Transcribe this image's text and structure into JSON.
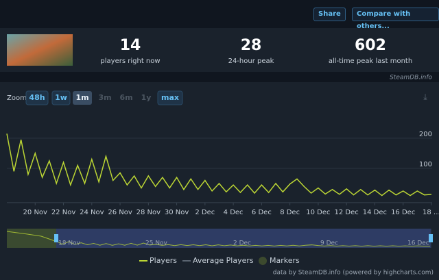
{
  "header": {
    "share": "Share",
    "compare": "Compare with others..."
  },
  "stats": [
    {
      "value": "14",
      "label": "players right now"
    },
    {
      "value": "28",
      "label": "24-hour peak"
    },
    {
      "value": "602",
      "label": "all-time peak last month"
    }
  ],
  "watermark": "SteamDB.info",
  "zoom": {
    "label": "Zoom",
    "active": 2,
    "options": [
      {
        "label": "48h",
        "enabled": true
      },
      {
        "label": "1w",
        "enabled": true
      },
      {
        "label": "1m",
        "enabled": true
      },
      {
        "label": "3m",
        "enabled": false
      },
      {
        "label": "6m",
        "enabled": false
      },
      {
        "label": "1y",
        "enabled": false
      },
      {
        "label": "max",
        "enabled": true
      }
    ]
  },
  "chart_data": {
    "type": "line",
    "grid": true,
    "x": [
      18,
      18.5,
      19,
      19.5,
      20,
      20.5,
      21,
      21.5,
      22,
      22.5,
      23,
      23.5,
      24,
      24.5,
      25,
      25.5,
      26,
      26.5,
      27,
      27.5,
      28,
      28.5,
      29,
      29.5,
      30,
      30.5,
      31,
      31.5,
      32,
      32.5,
      33,
      33.5,
      34,
      34.5,
      35,
      35.5,
      36,
      36.5,
      37,
      37.5,
      38,
      38.5,
      39,
      39.5,
      40,
      40.5,
      41,
      41.5,
      42,
      42.5,
      43,
      43.5,
      44,
      44.5,
      45,
      45.5,
      46,
      46.5,
      47,
      47.5,
      48
    ],
    "series": [
      {
        "name": "Players",
        "color": "#bcd634",
        "values": [
          215,
          90,
          195,
          80,
          150,
          70,
          125,
          50,
          120,
          45,
          110,
          50,
          130,
          55,
          140,
          60,
          85,
          45,
          75,
          35,
          75,
          40,
          70,
          35,
          70,
          30,
          65,
          30,
          60,
          25,
          50,
          22,
          45,
          20,
          45,
          18,
          45,
          20,
          50,
          22,
          48,
          65,
          40,
          18,
          35,
          15,
          30,
          14,
          32,
          12,
          30,
          12,
          28,
          10,
          28,
          12,
          25,
          10,
          25,
          12,
          14
        ]
      },
      {
        "name": "Average Players",
        "color": "#5a6470"
      },
      {
        "name": "Markers",
        "color": "#3c4a2e"
      }
    ],
    "xlim": [
      18,
      48.05
    ],
    "ylim": [
      0,
      270
    ],
    "yticks": [
      100,
      200
    ],
    "xticks": [
      {
        "value": 20,
        "label": "20 Nov"
      },
      {
        "value": 22,
        "label": "22 Nov"
      },
      {
        "value": 24,
        "label": "24 Nov"
      },
      {
        "value": 26,
        "label": "26 Nov"
      },
      {
        "value": 28,
        "label": "28 Nov"
      },
      {
        "value": 30,
        "label": "30 Nov"
      },
      {
        "value": 32,
        "label": "2 Dec"
      },
      {
        "value": 34,
        "label": "4 Dec"
      },
      {
        "value": 36,
        "label": "6 Dec"
      },
      {
        "value": 38,
        "label": "8 Dec"
      },
      {
        "value": 40,
        "label": "10 Dec"
      },
      {
        "value": 42,
        "label": "12 Dec"
      },
      {
        "value": 44,
        "label": "14 Dec"
      },
      {
        "value": 46,
        "label": "16 Dec"
      },
      {
        "value": 48,
        "label": "18 …"
      }
    ]
  },
  "navigator": {
    "labels": [
      "18 Nov",
      "25 Nov",
      "2 Dec",
      "9 Dec",
      "16 Dec"
    ]
  },
  "credits": "data by SteamDB.info (powered by highcharts.com)"
}
